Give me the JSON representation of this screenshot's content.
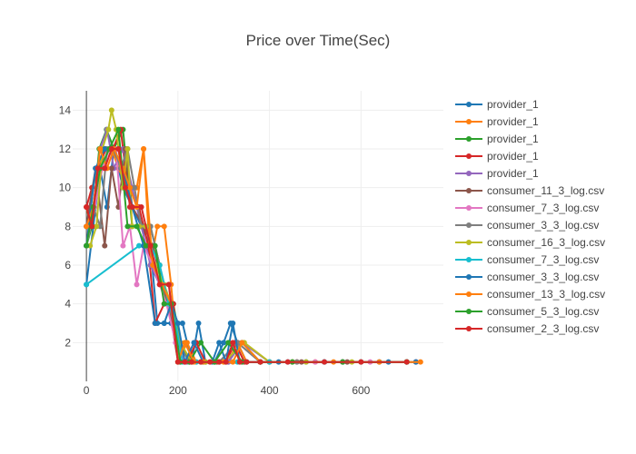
{
  "chart_data": {
    "type": "line",
    "title": "Price over Time(Sec)",
    "xlabel": "",
    "ylabel": "",
    "xlim": [
      -30,
      780
    ],
    "ylim": [
      0,
      15
    ],
    "x_ticks": [
      0,
      200,
      400,
      600
    ],
    "y_ticks": [
      2,
      4,
      6,
      8,
      10,
      12,
      14
    ],
    "grid": true,
    "legend_position": "right",
    "series": [
      {
        "name": "provider_1",
        "color": "#1f77b4",
        "x": [
          0,
          15,
          30,
          45,
          60,
          80,
          100,
          120,
          140,
          155,
          170,
          185,
          195,
          210,
          230,
          245,
          260,
          280,
          300,
          315,
          330,
          350,
          380,
          420,
          480,
          560,
          640,
          720
        ],
        "y": [
          5,
          8,
          11,
          9,
          12,
          10,
          9,
          8,
          7,
          3,
          3,
          3,
          3,
          3,
          1,
          3,
          1,
          1,
          2,
          3,
          2,
          1,
          1,
          1,
          1,
          1,
          1,
          1
        ]
      },
      {
        "name": "provider_1",
        "color": "#ff7f0e",
        "x": [
          0,
          10,
          25,
          40,
          55,
          70,
          90,
          110,
          125,
          140,
          155,
          170,
          185,
          200,
          220,
          240,
          260,
          290,
          310,
          330,
          350,
          400,
          500,
          600,
          720
        ],
        "y": [
          9,
          8,
          11,
          12,
          12,
          11,
          10,
          10,
          12,
          6,
          8,
          8,
          5,
          1,
          2,
          1,
          1,
          1,
          1,
          2,
          1,
          1,
          1,
          1,
          1
        ]
      },
      {
        "name": "provider_1",
        "color": "#2ca02c",
        "x": [
          0,
          12,
          28,
          44,
          60,
          80,
          100,
          120,
          140,
          160,
          175,
          190,
          205,
          225,
          250,
          280,
          310,
          340,
          380,
          450,
          560,
          700
        ],
        "y": [
          7,
          8,
          12,
          13,
          12,
          13,
          8,
          8,
          8,
          6,
          4,
          4,
          2,
          1,
          2,
          1,
          1,
          2,
          1,
          1,
          1,
          1
        ]
      },
      {
        "name": "provider_1",
        "color": "#d62728",
        "x": [
          0,
          12,
          28,
          42,
          58,
          75,
          95,
          115,
          135,
          150,
          170,
          190,
          205,
          220,
          240,
          260,
          285,
          305,
          325,
          345,
          380,
          460,
          560,
          700
        ],
        "y": [
          9,
          10,
          11,
          12,
          12,
          13,
          9,
          9,
          7,
          3,
          4,
          4,
          1,
          1,
          2,
          1,
          1,
          1,
          2,
          1,
          1,
          1,
          1,
          1
        ]
      },
      {
        "name": "provider_1",
        "color": "#9467bd",
        "x": [
          0,
          15,
          30,
          45,
          60,
          80,
          100,
          120,
          140,
          160,
          180,
          200,
          220,
          250,
          280,
          310,
          340,
          400,
          520,
          700
        ],
        "y": [
          8,
          9,
          12,
          13,
          11,
          12,
          10,
          8,
          6,
          5,
          5,
          1,
          1,
          1,
          1,
          1,
          2,
          1,
          1,
          1
        ]
      },
      {
        "name": "consumer_11_3_log.csv",
        "color": "#8c564b",
        "x": [
          0,
          20,
          40,
          55,
          70,
          85,
          100,
          125,
          145,
          165,
          180,
          200,
          230,
          260,
          290,
          330,
          380,
          470,
          570,
          700
        ],
        "y": [
          8,
          11,
          7,
          11,
          9,
          12,
          9,
          8,
          7,
          5,
          4,
          1,
          1,
          1,
          1,
          2,
          1,
          1,
          1,
          1
        ]
      },
      {
        "name": "consumer_7_3_log.csv",
        "color": "#e377c2",
        "x": [
          0,
          18,
          35,
          50,
          65,
          80,
          95,
          110,
          125,
          145,
          160,
          175,
          195,
          215,
          240,
          270,
          300,
          340,
          400,
          500,
          620,
          720
        ],
        "y": [
          7,
          9,
          11,
          12,
          12,
          7,
          8,
          5,
          7,
          6,
          5,
          4,
          2,
          1,
          1,
          1,
          1,
          1,
          1,
          1,
          1,
          1
        ]
      },
      {
        "name": "consumer_3_3_log.csv",
        "color": "#7f7f7f",
        "x": [
          0,
          15,
          30,
          45,
          60,
          75,
          90,
          105,
          120,
          140,
          160,
          180,
          200,
          225,
          255,
          290,
          330,
          380,
          460,
          560,
          700
        ],
        "y": [
          7,
          9,
          8,
          12,
          12,
          11,
          12,
          10,
          8,
          8,
          6,
          4,
          2,
          1,
          1,
          1,
          2,
          1,
          1,
          1,
          1
        ]
      },
      {
        "name": "consumer_16_3_log.csv",
        "color": "#bcbd22",
        "x": [
          0,
          8,
          22,
          35,
          48,
          55,
          65,
          80,
          90,
          100,
          115,
          130,
          150,
          170,
          185,
          205,
          230,
          260,
          300,
          345,
          400,
          480,
          580,
          700
        ],
        "y": [
          7,
          7,
          8,
          12,
          13,
          14,
          13,
          10,
          12,
          8,
          8,
          8,
          6,
          5,
          4,
          2,
          1,
          1,
          1,
          2,
          1,
          1,
          1,
          1
        ]
      },
      {
        "name": "consumer_7_3_log.csv",
        "color": "#17becf",
        "x": [
          0,
          115,
          140,
          160,
          180,
          195,
          210,
          240,
          280,
          330,
          400,
          520,
          700
        ],
        "y": [
          5,
          7,
          7,
          6,
          4,
          3,
          1,
          1,
          1,
          1,
          1,
          1,
          1
        ]
      },
      {
        "name": "consumer_3_3_log.csv",
        "color": "#1f77b4",
        "x": [
          0,
          20,
          40,
          60,
          80,
          100,
          125,
          150,
          170,
          185,
          200,
          215,
          235,
          255,
          275,
          290,
          305,
          320,
          335,
          350,
          380,
          440,
          520,
          600,
          660,
          720
        ],
        "y": [
          7,
          11,
          12,
          12,
          11,
          9,
          7,
          3,
          3,
          4,
          3,
          1,
          2,
          1,
          1,
          2,
          1,
          3,
          1,
          1,
          1,
          1,
          1,
          1,
          1,
          1
        ]
      },
      {
        "name": "consumer_13_3_log.csv",
        "color": "#ff7f0e",
        "x": [
          0,
          15,
          30,
          45,
          60,
          80,
          95,
          110,
          125,
          145,
          165,
          185,
          200,
          215,
          235,
          255,
          280,
          300,
          320,
          340,
          380,
          450,
          540,
          640,
          730
        ],
        "y": [
          8,
          9,
          12,
          11,
          12,
          11,
          10,
          9,
          12,
          6,
          5,
          4,
          1,
          2,
          1,
          1,
          1,
          1,
          1,
          2,
          1,
          1,
          1,
          1,
          1
        ]
      },
      {
        "name": "consumer_5_3_log.csv",
        "color": "#2ca02c",
        "x": [
          0,
          15,
          30,
          50,
          70,
          90,
          110,
          130,
          150,
          170,
          185,
          205,
          225,
          250,
          280,
          310,
          340,
          380,
          450,
          560,
          700
        ],
        "y": [
          7,
          9,
          11,
          12,
          13,
          8,
          8,
          7,
          7,
          4,
          4,
          1,
          1,
          1,
          1,
          2,
          1,
          1,
          1,
          1,
          1
        ]
      },
      {
        "name": "consumer_2_3_log.csv",
        "color": "#d62728",
        "x": [
          0,
          12,
          25,
          40,
          55,
          70,
          85,
          100,
          120,
          140,
          160,
          180,
          200,
          215,
          230,
          250,
          270,
          290,
          305,
          320,
          335,
          350,
          380,
          440,
          520,
          600,
          700
        ],
        "y": [
          9,
          8,
          11,
          11,
          12,
          12,
          10,
          9,
          9,
          7,
          5,
          5,
          1,
          1,
          1,
          1,
          1,
          1,
          1,
          2,
          1,
          1,
          1,
          1,
          1,
          1,
          1
        ]
      }
    ]
  }
}
